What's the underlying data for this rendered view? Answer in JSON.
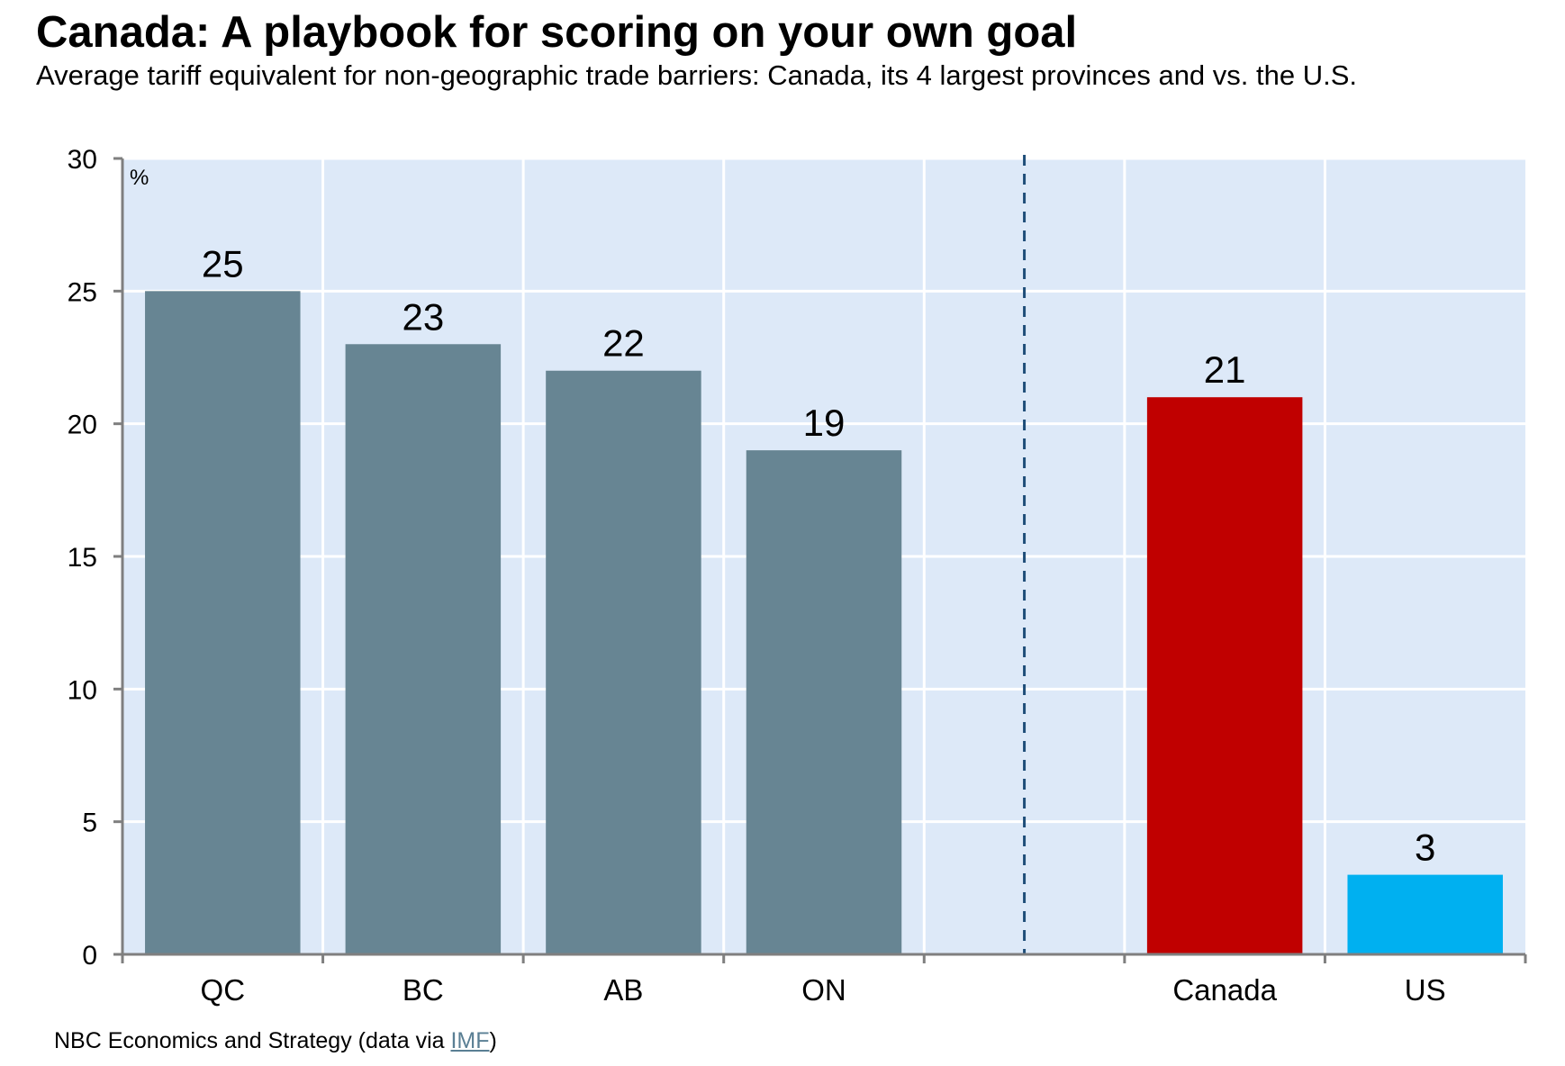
{
  "header": {
    "title": "Canada: A playbook for scoring on your own goal",
    "subtitle": "Average tariff equivalent for non-geographic trade barriers: Canada, its 4 largest provinces and vs. the U.S."
  },
  "footer": {
    "source_prefix": "NBC Economics and Strategy (data via ",
    "source_link": "IMF",
    "source_suffix": ")"
  },
  "colors": {
    "plot_background": "#dde9f8",
    "province_bar": "#678593",
    "canada_bar": "#c00000",
    "us_bar": "#00b0f0",
    "divider": "#1f4e79",
    "axis": "#7f7f7f"
  },
  "chart_data": {
    "type": "bar",
    "categories": [
      "QC",
      "BC",
      "AB",
      "ON",
      "",
      "Canada",
      "US"
    ],
    "values": [
      25,
      23,
      22,
      19,
      null,
      21,
      3
    ],
    "bar_colors": [
      "#678593",
      "#678593",
      "#678593",
      "#678593",
      null,
      "#c00000",
      "#00b0f0"
    ],
    "data_labels": [
      "25",
      "23",
      "22",
      "19",
      "",
      "21",
      "3"
    ],
    "unit_label": "%",
    "title": "Canada: A playbook for scoring on your own goal",
    "subtitle": "Average tariff equivalent for non-geographic trade barriers: Canada, its 4 largest provinces and vs. the U.S.",
    "xlabel": "",
    "ylabel": "",
    "ylim": [
      0,
      30
    ],
    "yticks": [
      0,
      5,
      10,
      15,
      20,
      25,
      30
    ],
    "grid": true,
    "legend": "none",
    "divider_after_category_index": 4
  }
}
